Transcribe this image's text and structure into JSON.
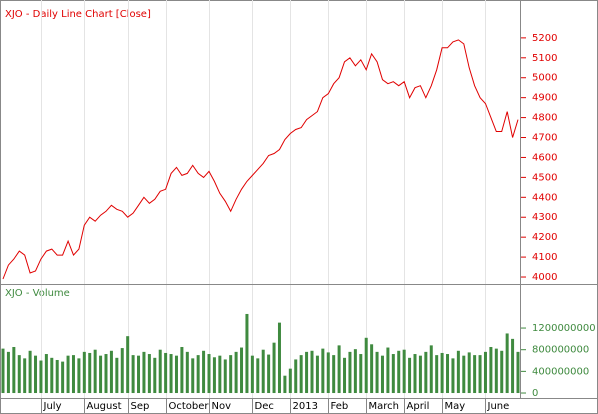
{
  "chart_data": [
    {
      "type": "line",
      "title": "XJO - Daily Line Chart [Close]",
      "color": "#e00000",
      "values": [
        3990,
        4060,
        4090,
        4130,
        4110,
        4020,
        4030,
        4090,
        4130,
        4140,
        4110,
        4110,
        4180,
        4110,
        4140,
        4260,
        4300,
        4280,
        4310,
        4330,
        4360,
        4340,
        4330,
        4300,
        4320,
        4360,
        4400,
        4370,
        4390,
        4430,
        4440,
        4520,
        4550,
        4510,
        4520,
        4560,
        4520,
        4500,
        4530,
        4480,
        4420,
        4380,
        4330,
        4390,
        4440,
        4480,
        4510,
        4540,
        4570,
        4610,
        4620,
        4640,
        4690,
        4720,
        4740,
        4750,
        4790,
        4810,
        4830,
        4900,
        4920,
        4970,
        5000,
        5080,
        5100,
        5060,
        5090,
        5040,
        5120,
        5080,
        4990,
        4970,
        4980,
        4960,
        4980,
        4900,
        4950,
        4960,
        4900,
        4960,
        5040,
        5150,
        5150,
        5180,
        5190,
        5170,
        5050,
        4960,
        4900,
        4870,
        4800,
        4730,
        4730,
        4830,
        4700,
        4790
      ],
      "ylim": [
        3970,
        5375
      ],
      "yticks": [
        4000,
        4100,
        4200,
        4300,
        4400,
        4500,
        4600,
        4700,
        4800,
        4900,
        5000,
        5100,
        5200
      ]
    },
    {
      "type": "bar",
      "title": "XJO - Volume",
      "color": "#3f8a3f",
      "categories": [
        null,
        null,
        null,
        null,
        null,
        null,
        null,
        "July",
        null,
        null,
        null,
        null,
        null,
        null,
        null,
        "August",
        null,
        null,
        null,
        null,
        null,
        null,
        null,
        "Sep",
        null,
        null,
        null,
        null,
        null,
        null,
        "October",
        null,
        null,
        null,
        null,
        null,
        null,
        null,
        "Nov",
        null,
        null,
        null,
        null,
        null,
        null,
        null,
        "Dec",
        null,
        null,
        null,
        null,
        null,
        null,
        "2013",
        null,
        null,
        null,
        null,
        null,
        null,
        "Feb",
        null,
        null,
        null,
        null,
        null,
        null,
        "March",
        null,
        null,
        null,
        null,
        null,
        null,
        "April",
        null,
        null,
        null,
        null,
        null,
        null,
        "May",
        null,
        null,
        null,
        null,
        null,
        null,
        null,
        "June",
        null,
        null,
        null,
        null,
        null,
        null
      ],
      "values": [
        820000000,
        760000000,
        850000000,
        700000000,
        640000000,
        780000000,
        690000000,
        600000000,
        720000000,
        650000000,
        610000000,
        580000000,
        690000000,
        700000000,
        640000000,
        760000000,
        740000000,
        800000000,
        690000000,
        720000000,
        780000000,
        650000000,
        830000000,
        1050000000,
        700000000,
        690000000,
        760000000,
        720000000,
        650000000,
        800000000,
        740000000,
        720000000,
        690000000,
        850000000,
        760000000,
        640000000,
        700000000,
        780000000,
        720000000,
        660000000,
        690000000,
        620000000,
        700000000,
        760000000,
        840000000,
        1460000000,
        690000000,
        640000000,
        800000000,
        710000000,
        930000000,
        1300000000,
        320000000,
        450000000,
        620000000,
        700000000,
        760000000,
        780000000,
        690000000,
        820000000,
        750000000,
        700000000,
        880000000,
        650000000,
        760000000,
        810000000,
        720000000,
        1020000000,
        900000000,
        760000000,
        690000000,
        840000000,
        720000000,
        780000000,
        800000000,
        650000000,
        720000000,
        690000000,
        760000000,
        880000000,
        700000000,
        740000000,
        720000000,
        640000000,
        780000000,
        690000000,
        750000000,
        700000000,
        700000000,
        760000000,
        850000000,
        820000000,
        780000000,
        1100000000,
        1000000000,
        760000000
      ],
      "ylim": [
        -92000000,
        1995000000
      ],
      "yticks": [
        0,
        400000000,
        800000000,
        1200000000
      ]
    }
  ]
}
